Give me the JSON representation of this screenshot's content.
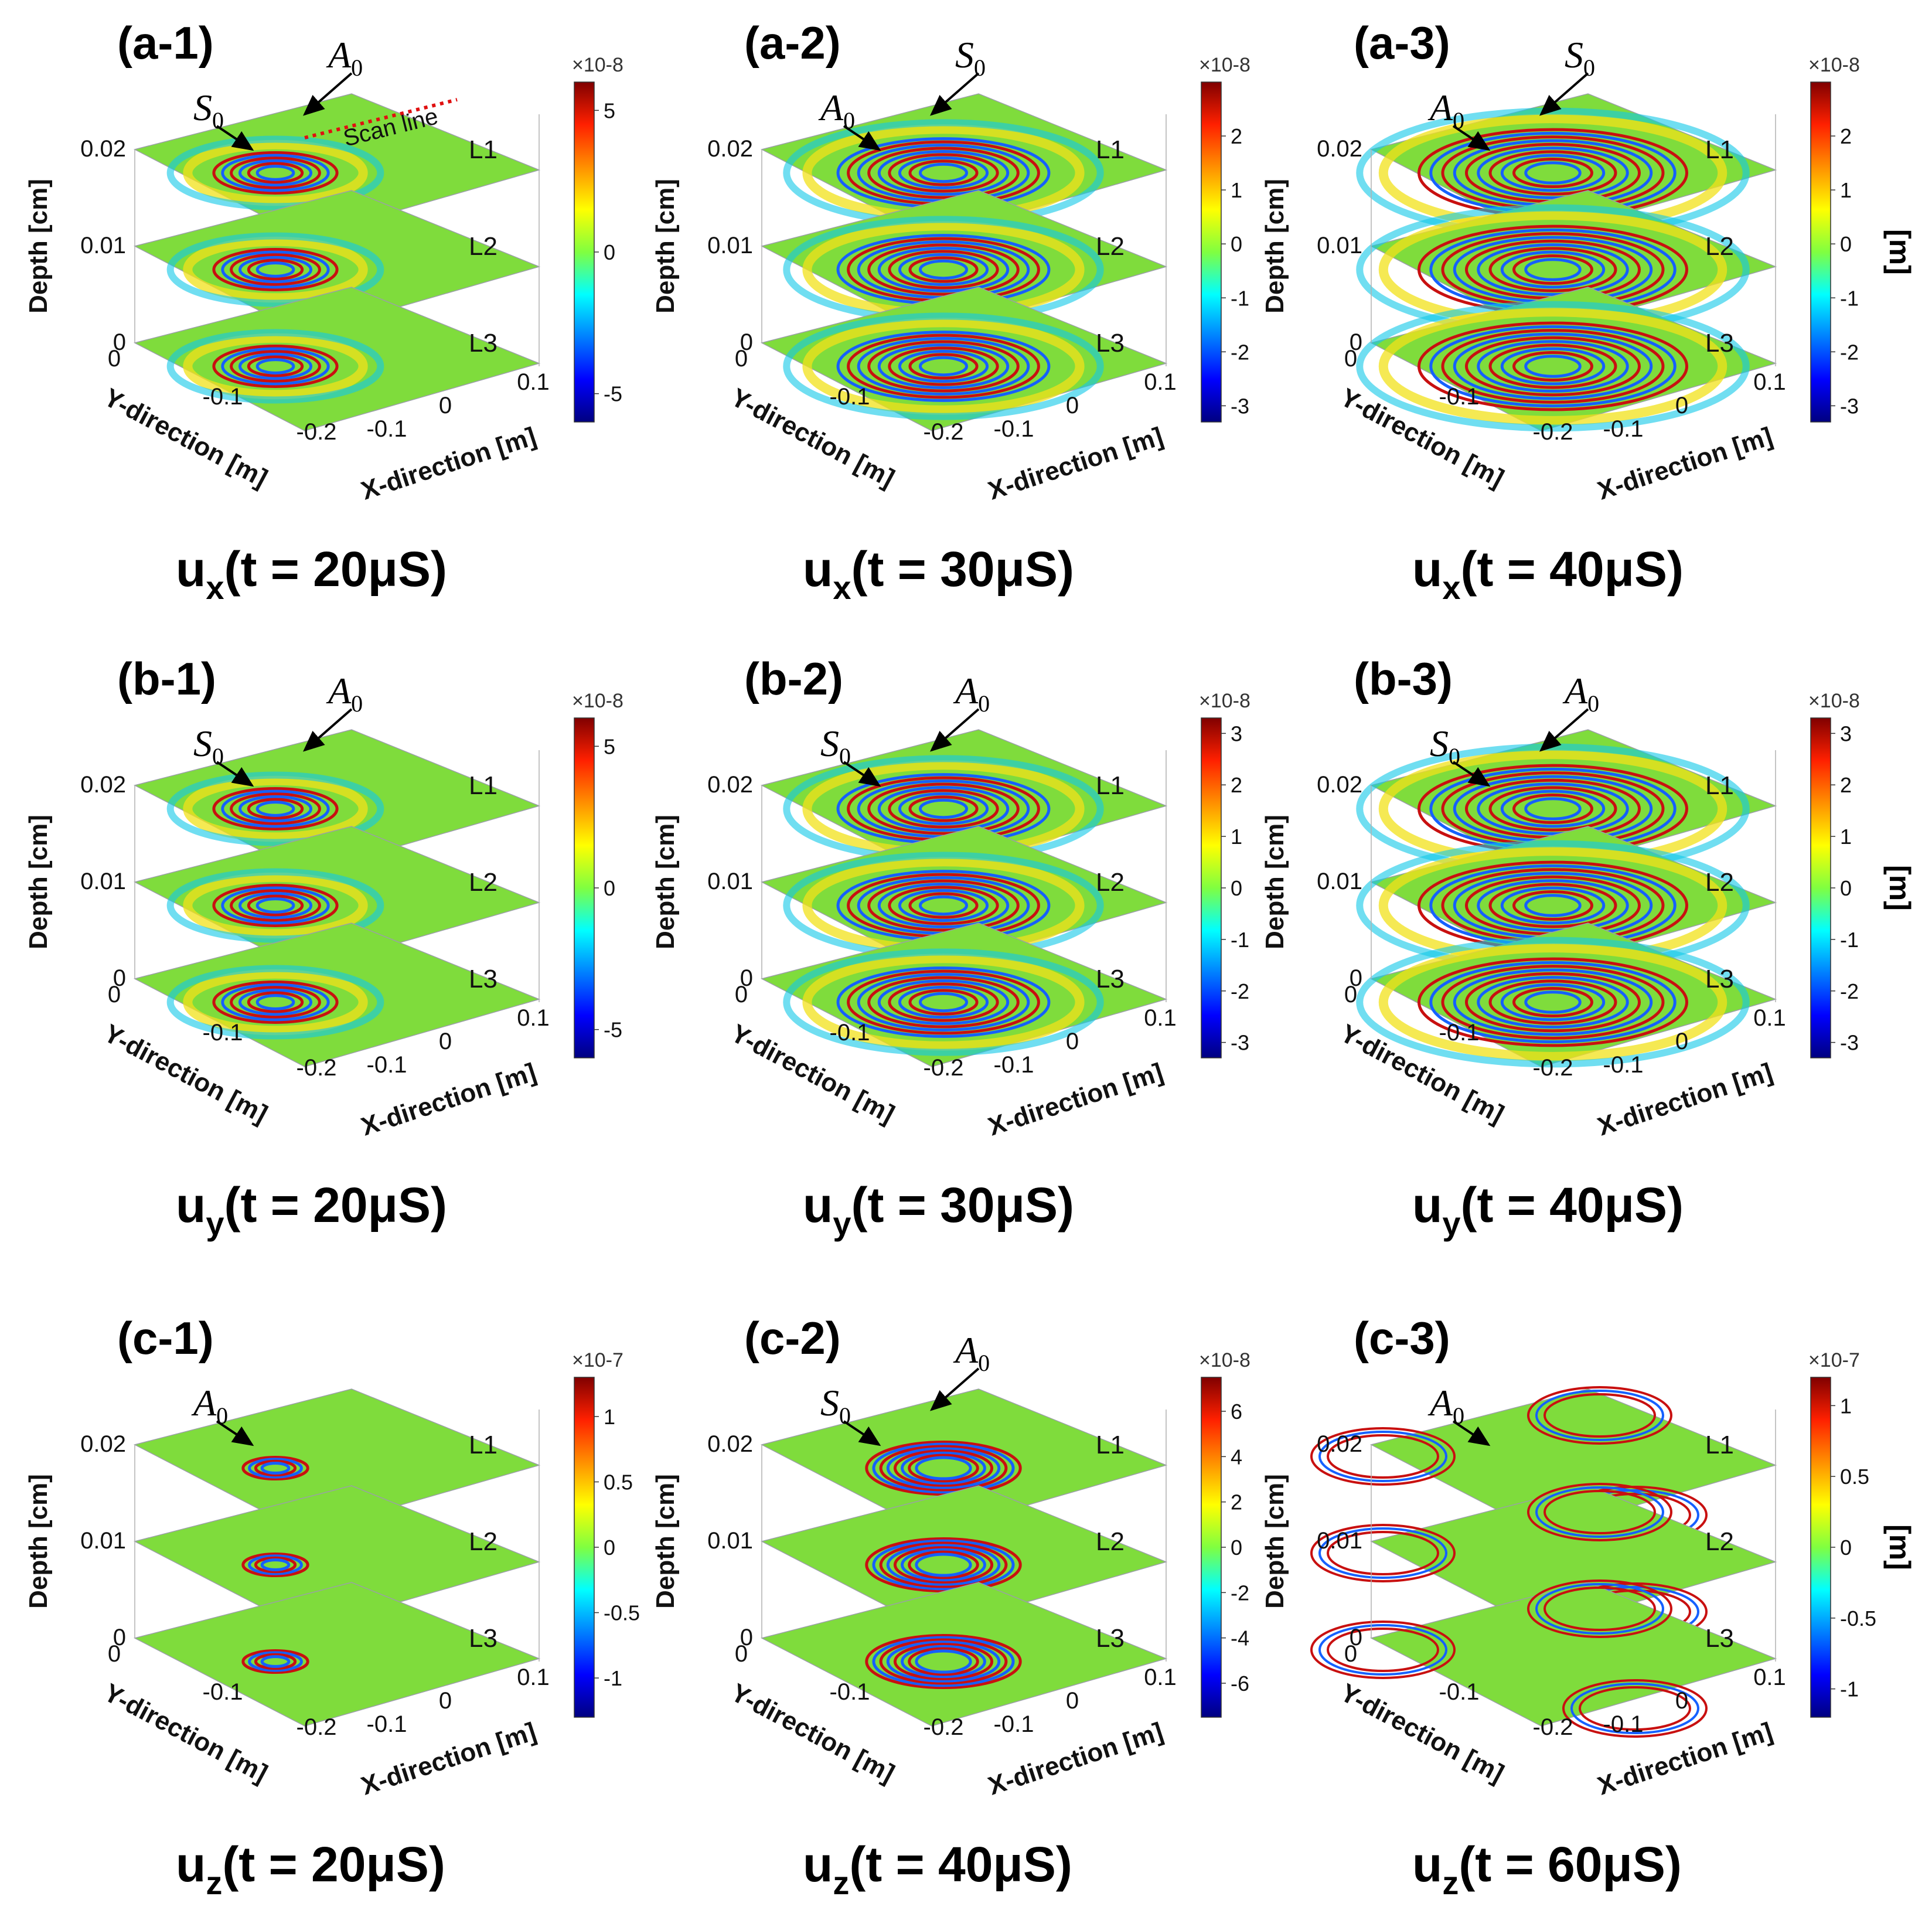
{
  "colors": {
    "background_field": "#7fdc3c",
    "colormap": [
      "#0a0a8c",
      "#1560ff",
      "#10c8e8",
      "#7fdc3c",
      "#f2e21a",
      "#ff8a10",
      "#c81010",
      "#7a0000"
    ],
    "arrow": "#000000",
    "scan_line": "#e01010"
  },
  "axes_labels": {
    "depth": "Depth [cm]",
    "y_dir": "Y-direction [m]",
    "x_dir": "X-direction [m]",
    "depth_ticks": [
      "0.02",
      "0.01",
      "0"
    ],
    "y_ticks": [
      "0",
      "-0.1",
      "-0.2"
    ],
    "x_ticks": [
      "-0.1",
      "0",
      "0.1"
    ],
    "layers": [
      "L1",
      "L2",
      "L3"
    ]
  },
  "panels": [
    {
      "label": "(a-1)",
      "caption_main": "u",
      "caption_sub": "x",
      "caption_rest": "(t = 20μS)",
      "cb_exponent": "×10-8",
      "cb_ticks": [
        "5",
        "0",
        "-5"
      ],
      "cb_range": [
        -6,
        6
      ],
      "show_unit": false,
      "pattern": "small",
      "annotations": [
        {
          "text": "S",
          "sub": "0"
        },
        {
          "text": "A",
          "sub": "0"
        },
        {
          "text": "Scan line"
        }
      ]
    },
    {
      "label": "(a-2)",
      "caption_main": "u",
      "caption_sub": "x",
      "caption_rest": "(t = 30μS)",
      "cb_exponent": "×10-8",
      "cb_ticks": [
        "2",
        "1",
        "0",
        "-1",
        "-2",
        "-3"
      ],
      "cb_range": [
        -3.3,
        3.0
      ],
      "show_unit": false,
      "pattern": "medium",
      "annotations": [
        {
          "text": "A",
          "sub": "0"
        },
        {
          "text": "S",
          "sub": "0"
        }
      ]
    },
    {
      "label": "(a-3)",
      "caption_main": "u",
      "caption_sub": "x",
      "caption_rest": "(t = 40μS)",
      "cb_exponent": "×10-8",
      "cb_ticks": [
        "2",
        "1",
        "0",
        "-1",
        "-2",
        "-3"
      ],
      "cb_range": [
        -3.3,
        3.0
      ],
      "show_unit": true,
      "unit": "[m]",
      "pattern": "large",
      "annotations": [
        {
          "text": "A",
          "sub": "0"
        },
        {
          "text": "S",
          "sub": "0"
        }
      ]
    },
    {
      "label": "(b-1)",
      "caption_main": "u",
      "caption_sub": "y",
      "caption_rest": "(t = 20μS)",
      "cb_exponent": "×10-8",
      "cb_ticks": [
        "5",
        "0",
        "-5"
      ],
      "cb_range": [
        -6,
        6
      ],
      "show_unit": false,
      "pattern": "small",
      "annotations": [
        {
          "text": "S",
          "sub": "0"
        },
        {
          "text": "A",
          "sub": "0"
        }
      ]
    },
    {
      "label": "(b-2)",
      "caption_main": "u",
      "caption_sub": "y",
      "caption_rest": "(t = 30μS)",
      "cb_exponent": "×10-8",
      "cb_ticks": [
        "3",
        "2",
        "1",
        "0",
        "-1",
        "-2",
        "-3"
      ],
      "cb_range": [
        -3.3,
        3.3
      ],
      "show_unit": false,
      "pattern": "medium",
      "annotations": [
        {
          "text": "S",
          "sub": "0"
        },
        {
          "text": "A",
          "sub": "0"
        }
      ]
    },
    {
      "label": "(b-3)",
      "caption_main": "u",
      "caption_sub": "y",
      "caption_rest": "(t = 40μS)",
      "cb_exponent": "×10-8",
      "cb_ticks": [
        "3",
        "2",
        "1",
        "0",
        "-1",
        "-2",
        "-3"
      ],
      "cb_range": [
        -3.3,
        3.3
      ],
      "show_unit": true,
      "unit": "[m]",
      "pattern": "large",
      "annotations": [
        {
          "text": "S",
          "sub": "0"
        },
        {
          "text": "A",
          "sub": "0"
        }
      ]
    },
    {
      "label": "(c-1)",
      "caption_main": "u",
      "caption_sub": "z",
      "caption_rest": "(t = 20μS)",
      "cb_exponent": "×10-7",
      "cb_ticks": [
        "1",
        "0.5",
        "0",
        "-0.5",
        "-1"
      ],
      "cb_range": [
        -1.3,
        1.3
      ],
      "show_unit": false,
      "pattern": "tiny",
      "annotations": [
        {
          "text": "A",
          "sub": "0"
        }
      ]
    },
    {
      "label": "(c-2)",
      "caption_main": "u",
      "caption_sub": "z",
      "caption_rest": "(t = 40μS)",
      "cb_exponent": "×10-8",
      "cb_ticks": [
        "6",
        "4",
        "2",
        "0",
        "-2",
        "-4",
        "-6"
      ],
      "cb_range": [
        -7.5,
        7.5
      ],
      "show_unit": false,
      "pattern": "rings",
      "annotations": [
        {
          "text": "S",
          "sub": "0"
        },
        {
          "text": "A",
          "sub": "0"
        }
      ]
    },
    {
      "label": "(c-3)",
      "caption_main": "u",
      "caption_sub": "z",
      "caption_rest": "(t = 60μS)",
      "cb_exponent": "×10-7",
      "cb_ticks": [
        "1",
        "0.5",
        "0",
        "-0.5",
        "-1"
      ],
      "cb_range": [
        -1.2,
        1.2
      ],
      "show_unit": true,
      "unit": "[m]",
      "pattern": "outer",
      "annotations": [
        {
          "text": "A",
          "sub": "0"
        }
      ]
    }
  ]
}
